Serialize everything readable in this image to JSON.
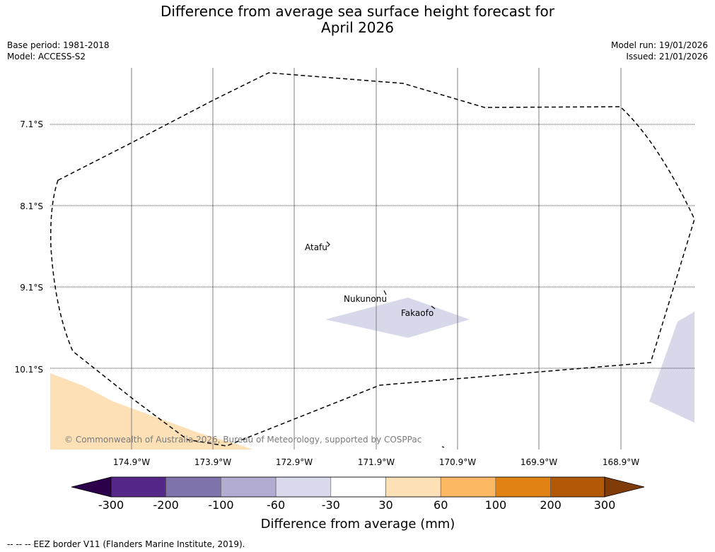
{
  "header": {
    "title_line1": "Difference from average sea surface height forecast for",
    "title_line2": "April 2026",
    "base_period": "Base period: 1981-2018",
    "model": "Model: ACCESS-S2",
    "model_run": "Model run: 19/01/2026",
    "issued": "Issued: 21/01/2026"
  },
  "map": {
    "lat_labels": [
      "7.1°S",
      "8.1°S",
      "9.1°S",
      "10.1°S"
    ],
    "lon_labels": [
      "174.9°W",
      "173.9°W",
      "172.9°W",
      "171.9°W",
      "170.9°W",
      "169.9°W",
      "168.9°W"
    ],
    "places": {
      "atafu": "Atafu",
      "nukunonu": "Nukunonu",
      "fakaofo": "Fakaofo"
    },
    "copyright": "© Commonwealth of Australia 2026, Bureau of Meteorology, supported by COSPPac",
    "colors": {
      "pale_purple": "#d7d8ea",
      "pale_orange": "#fee0b6",
      "eez_border": "#000000"
    }
  },
  "colorbar": {
    "ticks": [
      "-300",
      "-200",
      "-100",
      "-60",
      "-30",
      "30",
      "60",
      "100",
      "200",
      "300"
    ],
    "colors": [
      "#2d004b",
      "#542788",
      "#8073ac",
      "#b2abd2",
      "#d8daeb",
      "#ffffff",
      "#fee0b6",
      "#fdb863",
      "#e08214",
      "#b35806",
      "#7f3b08"
    ],
    "label": "Difference from average (mm)"
  },
  "footnote": "--  --  -- EEZ border V11 (Flanders Marine Institute, 2019)."
}
